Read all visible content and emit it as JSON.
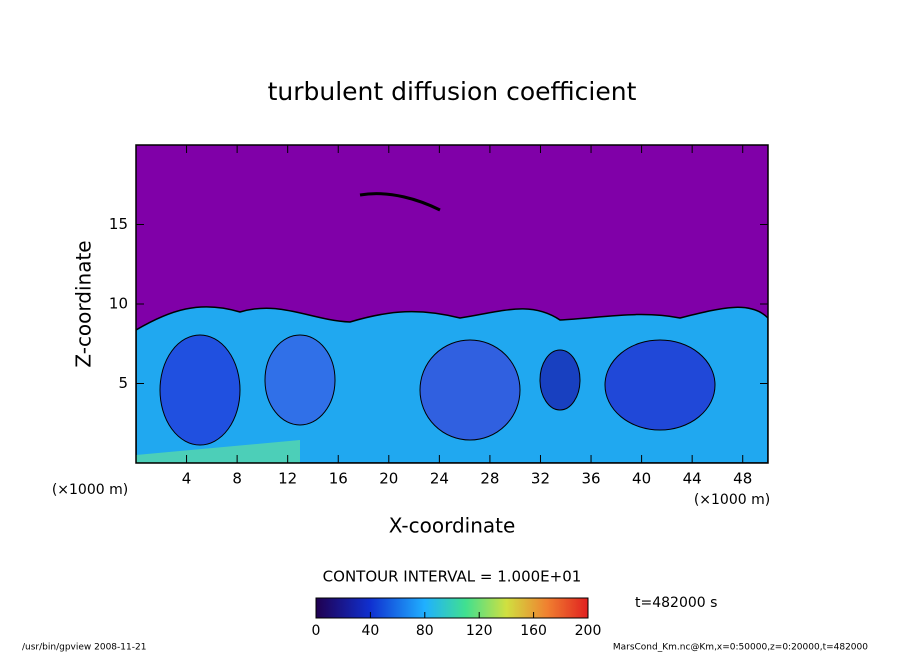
{
  "chart_data": {
    "type": "contour",
    "title": "turbulent diffusion coefficient",
    "xlabel": "X-coordinate",
    "ylabel": "Z-coordinate",
    "x_unit": "(×1000 m)",
    "xlim": [
      0,
      50
    ],
    "xticks": [
      4,
      8,
      12,
      16,
      20,
      24,
      28,
      32,
      36,
      40,
      44,
      48
    ],
    "ylim": [
      0,
      20
    ],
    "yticks": [
      5,
      10,
      15
    ],
    "contour_interval_label": "CONTOUR INTERVAL = 1.000E+01",
    "colorbar": {
      "lim": [
        0,
        200
      ],
      "ticks": [
        0,
        40,
        80,
        120,
        160,
        200
      ]
    },
    "time_label": "t=482000 s",
    "footer_left": "/usr/bin/gpview   2008-11-21",
    "footer_right": "MarsCond_Km.nc@Km,x=0:50000,z=0:20000,t=482000"
  }
}
